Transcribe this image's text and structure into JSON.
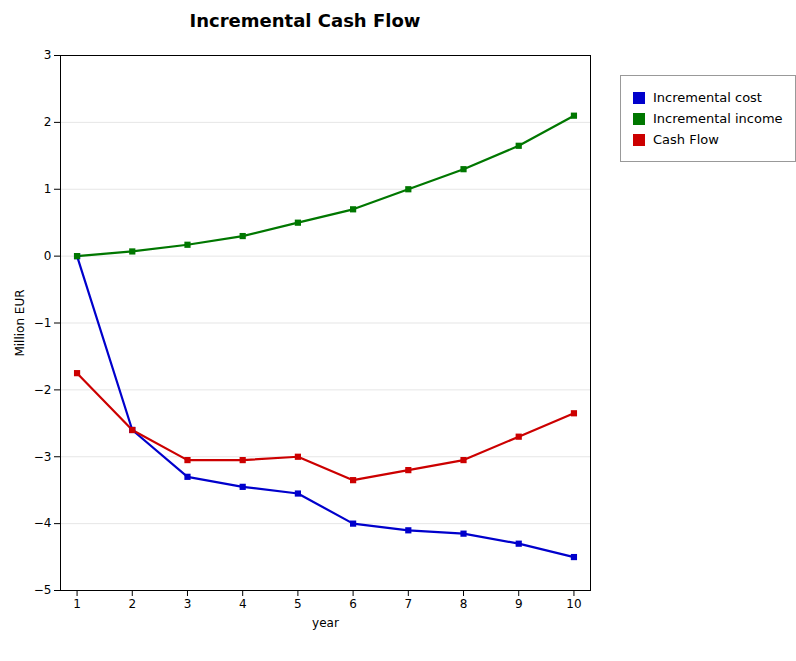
{
  "chart_data": {
    "type": "line",
    "title": "Incremental Cash Flow",
    "xlabel": "year",
    "ylabel": "Million EUR",
    "x": [
      1,
      2,
      3,
      4,
      5,
      6,
      7,
      8,
      9,
      10
    ],
    "series": [
      {
        "name": "Incremental cost",
        "color": "#0000cc",
        "marker": "square",
        "values": [
          0.0,
          -2.6,
          -3.3,
          -3.45,
          -3.55,
          -4.0,
          -4.1,
          -4.15,
          -4.3,
          -4.5
        ]
      },
      {
        "name": "Incremental income",
        "color": "#007700",
        "marker": "square",
        "values": [
          0.0,
          0.07,
          0.17,
          0.3,
          0.5,
          0.7,
          1.0,
          1.3,
          1.65,
          2.1
        ]
      },
      {
        "name": "Cash Flow",
        "color": "#cc0000",
        "marker": "square",
        "values": [
          -1.75,
          -2.6,
          -3.05,
          -3.05,
          -3.0,
          -3.35,
          -3.2,
          -3.05,
          -2.7,
          -2.35
        ]
      }
    ],
    "xlim": [
      0.7,
      10.3
    ],
    "xticks": [
      1,
      2,
      3,
      4,
      5,
      6,
      7,
      8,
      9,
      10
    ],
    "ylim": [
      -5,
      3
    ],
    "yticks": [
      -5,
      -4,
      -3,
      -2,
      -1,
      0,
      1,
      2,
      3
    ],
    "grid": "y",
    "legend": "right"
  }
}
